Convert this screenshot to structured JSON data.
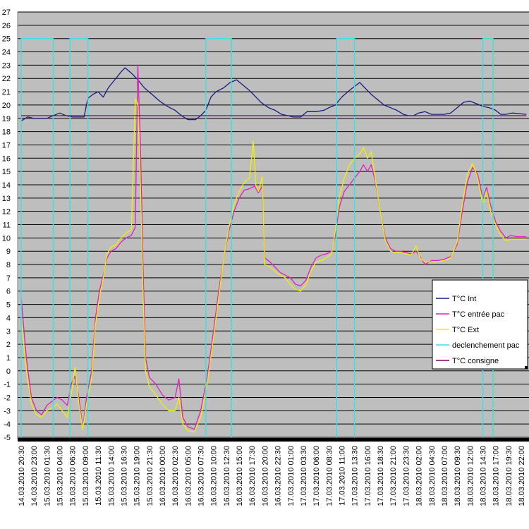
{
  "chart_data": {
    "type": "line",
    "title": "",
    "xlabel": "",
    "ylabel": "",
    "ylim": [
      -5,
      27
    ],
    "y_ticks": [
      -5,
      -4,
      -3,
      -2,
      -1,
      0,
      1,
      2,
      3,
      4,
      5,
      6,
      7,
      8,
      9,
      10,
      11,
      12,
      13,
      14,
      15,
      16,
      17,
      18,
      19,
      20,
      21,
      22,
      23,
      24,
      25,
      26,
      27
    ],
    "grid": true,
    "legend": "right",
    "x_tick_labels": [
      "14.03.2010 20:30",
      "14.03.2010 23:00",
      "15.03.2010 01:30",
      "15.03.2010 04:00",
      "15.03.2010 06:30",
      "15.03.2010 09:00",
      "15.03.2010 11:30",
      "15.03.2010 14:00",
      "15.03.2010 16:30",
      "15.03.2010 19:00",
      "15.03.2010 21:30",
      "16.03.2010 00:00",
      "16.03.2010 02:30",
      "16.03.2010 05:00",
      "16.03.2010 07:30",
      "16.03.2010 10:00",
      "16.03.2010 12:30",
      "16.03.2010 15:00",
      "16.03.2010 17:30",
      "16.03.2010 20:00",
      "16.03.2010 22:30",
      "17.03.2010 01:00",
      "17.03.2010 03:30",
      "17.03.2010 06:00",
      "17.03.2010 08:30",
      "17.03.2010 11:00",
      "17.03.2010 13:30",
      "17.03.2010 16:00",
      "17.03.2010 18:30",
      "17.03.2010 21:00",
      "17.03.2010 23:30",
      "18.03.2010 02:00",
      "18.03.2010 04:30",
      "18.03.2010 07:00",
      "18.03.2010 09:30",
      "18.03.2010 12:00",
      "18.03.2010 14:30",
      "18.03.2010 17:00",
      "18.03.2010 19:30",
      "18.03.2010 22:00"
    ],
    "x_range": [
      0,
      39.4
    ],
    "series": [
      {
        "name": "T°C Int",
        "color": "#1a1a80",
        "points": [
          [
            0,
            18.8
          ],
          [
            0.5,
            19.1
          ],
          [
            1,
            19
          ],
          [
            2,
            19
          ],
          [
            3,
            19.4
          ],
          [
            3.5,
            19.2
          ],
          [
            4,
            19.1
          ],
          [
            4.9,
            19.1
          ],
          [
            5.2,
            20.5
          ],
          [
            5.6,
            20.8
          ],
          [
            6,
            21
          ],
          [
            6.4,
            20.6
          ],
          [
            6.8,
            21.3
          ],
          [
            7.3,
            21.9
          ],
          [
            7.8,
            22.5
          ],
          [
            8.1,
            22.8
          ],
          [
            8.6,
            22.4
          ],
          [
            9.1,
            21.9
          ],
          [
            9.6,
            21.3
          ],
          [
            10.2,
            20.8
          ],
          [
            10.8,
            20.3
          ],
          [
            11.4,
            19.9
          ],
          [
            12,
            19.6
          ],
          [
            12.5,
            19.2
          ],
          [
            13,
            18.9
          ],
          [
            13.6,
            18.9
          ],
          [
            14,
            19.2
          ],
          [
            14.4,
            19.6
          ],
          [
            14.8,
            20.6
          ],
          [
            15.2,
            21
          ],
          [
            15.8,
            21.3
          ],
          [
            16.3,
            21.7
          ],
          [
            16.8,
            21.9
          ],
          [
            17.3,
            21.5
          ],
          [
            17.8,
            21.1
          ],
          [
            18.2,
            20.7
          ],
          [
            18.7,
            20.2
          ],
          [
            19.3,
            19.8
          ],
          [
            19.8,
            19.6
          ],
          [
            20.3,
            19.3
          ],
          [
            20.8,
            19.2
          ],
          [
            21.2,
            19.1
          ],
          [
            21.8,
            19.1
          ],
          [
            22.3,
            19.5
          ],
          [
            23,
            19.5
          ],
          [
            23.6,
            19.6
          ],
          [
            24,
            19.8
          ],
          [
            24.5,
            20
          ],
          [
            25,
            20.6
          ],
          [
            25.6,
            21.1
          ],
          [
            26,
            21.4
          ],
          [
            26.4,
            21.7
          ],
          [
            26.8,
            21.3
          ],
          [
            27.3,
            20.8
          ],
          [
            27.8,
            20.4
          ],
          [
            28.3,
            20
          ],
          [
            28.8,
            19.8
          ],
          [
            29.3,
            19.6
          ],
          [
            29.8,
            19.3
          ],
          [
            30.2,
            19.2
          ],
          [
            30.6,
            19.2
          ],
          [
            31,
            19.4
          ],
          [
            31.5,
            19.5
          ],
          [
            32,
            19.3
          ],
          [
            32.5,
            19.3
          ],
          [
            33,
            19.3
          ],
          [
            33.5,
            19.4
          ],
          [
            34,
            19.8
          ],
          [
            34.5,
            20.2
          ],
          [
            35,
            20.3
          ],
          [
            35.5,
            20.1
          ],
          [
            36,
            19.9
          ],
          [
            36.5,
            19.8
          ],
          [
            37,
            19.6
          ],
          [
            37.4,
            19.3
          ],
          [
            37.8,
            19.3
          ],
          [
            38.3,
            19.4
          ],
          [
            39.4,
            19.3
          ]
        ]
      },
      {
        "name": "T°C entrée pac",
        "color": "#e020c0",
        "points": [
          [
            0,
            5.5
          ],
          [
            0.4,
            1
          ],
          [
            0.8,
            -2
          ],
          [
            1.2,
            -3
          ],
          [
            1.6,
            -3.3
          ],
          [
            2,
            -2.6
          ],
          [
            2.4,
            -2.3
          ],
          [
            2.8,
            -2
          ],
          [
            3.2,
            -2.2
          ],
          [
            3.6,
            -2.6
          ],
          [
            3.9,
            -1
          ],
          [
            4.2,
            -0.4
          ],
          [
            4.5,
            -2
          ],
          [
            4.8,
            -4.3
          ],
          [
            5.1,
            -2
          ],
          [
            5.5,
            0
          ],
          [
            5.8,
            4
          ],
          [
            6.1,
            6
          ],
          [
            6.4,
            7.2
          ],
          [
            6.7,
            8.5
          ],
          [
            7,
            9
          ],
          [
            7.4,
            9.2
          ],
          [
            7.8,
            9.7
          ],
          [
            8.2,
            10
          ],
          [
            8.6,
            10.2
          ],
          [
            8.9,
            10.8
          ],
          [
            9.1,
            23
          ],
          [
            9.3,
            17
          ],
          [
            9.5,
            8
          ],
          [
            9.7,
            1
          ],
          [
            10,
            -0.5
          ],
          [
            10.5,
            -1
          ],
          [
            11,
            -1.8
          ],
          [
            11.5,
            -2.2
          ],
          [
            12,
            -2
          ],
          [
            12.3,
            -0.6
          ],
          [
            12.6,
            -3.5
          ],
          [
            13,
            -4.2
          ],
          [
            13.5,
            -4.4
          ],
          [
            14,
            -3
          ],
          [
            14.5,
            -0.5
          ],
          [
            15,
            3
          ],
          [
            15.4,
            6
          ],
          [
            15.8,
            8.5
          ],
          [
            16.2,
            10.5
          ],
          [
            16.6,
            12
          ],
          [
            17,
            13
          ],
          [
            17.4,
            13.6
          ],
          [
            17.8,
            13.7
          ],
          [
            18.2,
            13.9
          ],
          [
            18.5,
            13.4
          ],
          [
            18.8,
            13.9
          ],
          [
            19,
            8.5
          ],
          [
            19.4,
            8.2
          ],
          [
            19.8,
            7.8
          ],
          [
            20.2,
            7.4
          ],
          [
            20.6,
            7.2
          ],
          [
            21,
            7
          ],
          [
            21.4,
            6.5
          ],
          [
            21.8,
            6.4
          ],
          [
            22.2,
            6.8
          ],
          [
            22.6,
            7.8
          ],
          [
            23,
            8.5
          ],
          [
            23.4,
            8.7
          ],
          [
            23.8,
            8.8
          ],
          [
            24.2,
            9
          ],
          [
            24.5,
            10.2
          ],
          [
            24.8,
            12.3
          ],
          [
            25.2,
            13.5
          ],
          [
            25.6,
            14
          ],
          [
            26,
            14.5
          ],
          [
            26.4,
            15
          ],
          [
            26.7,
            15.5
          ],
          [
            27,
            15
          ],
          [
            27.3,
            15.5
          ],
          [
            27.6,
            14.3
          ],
          [
            28,
            12
          ],
          [
            28.4,
            10
          ],
          [
            28.8,
            9.2
          ],
          [
            29.2,
            9
          ],
          [
            29.6,
            9
          ],
          [
            30,
            8.9
          ],
          [
            30.4,
            8.8
          ],
          [
            30.8,
            9
          ],
          [
            31.1,
            8.6
          ],
          [
            31.5,
            8
          ],
          [
            32,
            8.3
          ],
          [
            32.5,
            8.3
          ],
          [
            33,
            8.4
          ],
          [
            33.5,
            8.6
          ],
          [
            34,
            9.5
          ],
          [
            34.4,
            12
          ],
          [
            34.8,
            14.2
          ],
          [
            35.2,
            15.3
          ],
          [
            35.6,
            14.8
          ],
          [
            36,
            13
          ],
          [
            36.3,
            13.8
          ],
          [
            36.6,
            12.5
          ],
          [
            37,
            11.2
          ],
          [
            37.4,
            10.5
          ],
          [
            37.8,
            10
          ],
          [
            38.2,
            10.2
          ],
          [
            38.6,
            10.1
          ],
          [
            39.4,
            10.1
          ]
        ]
      },
      {
        "name": "T°C Ext",
        "color": "#f0f000",
        "points": [
          [
            0,
            4
          ],
          [
            0.4,
            0
          ],
          [
            0.8,
            -2.5
          ],
          [
            1.2,
            -3.3
          ],
          [
            1.6,
            -3.5
          ],
          [
            2,
            -3
          ],
          [
            2.4,
            -2.8
          ],
          [
            2.8,
            -2.5
          ],
          [
            3.2,
            -3
          ],
          [
            3.6,
            -3.5
          ],
          [
            3.9,
            -1.8
          ],
          [
            4.2,
            0.3
          ],
          [
            4.5,
            -2.5
          ],
          [
            4.8,
            -4.4
          ],
          [
            5.1,
            -2.5
          ],
          [
            5.5,
            -0.5
          ],
          [
            5.8,
            3.5
          ],
          [
            6.1,
            5.5
          ],
          [
            6.4,
            7
          ],
          [
            6.7,
            8.8
          ],
          [
            7,
            9.3
          ],
          [
            7.4,
            9.5
          ],
          [
            7.8,
            10
          ],
          [
            8.2,
            10.4
          ],
          [
            8.6,
            10.6
          ],
          [
            8.9,
            20.5
          ],
          [
            9.1,
            20
          ],
          [
            9.3,
            14
          ],
          [
            9.5,
            6
          ],
          [
            9.7,
            0
          ],
          [
            10,
            -1.2
          ],
          [
            10.5,
            -1.8
          ],
          [
            11,
            -2.5
          ],
          [
            11.5,
            -3
          ],
          [
            12,
            -3
          ],
          [
            12.3,
            -2
          ],
          [
            12.6,
            -4
          ],
          [
            13,
            -4.5
          ],
          [
            13.5,
            -4.6
          ],
          [
            14,
            -3.5
          ],
          [
            14.5,
            -1
          ],
          [
            15,
            2.5
          ],
          [
            15.4,
            5.5
          ],
          [
            15.8,
            8.5
          ],
          [
            16.2,
            10.8
          ],
          [
            16.6,
            12.5
          ],
          [
            17,
            13.5
          ],
          [
            17.4,
            14.2
          ],
          [
            17.8,
            14.5
          ],
          [
            18.1,
            17.3
          ],
          [
            18.3,
            14
          ],
          [
            18.5,
            13.5
          ],
          [
            18.8,
            14.6
          ],
          [
            19,
            8
          ],
          [
            19.4,
            7.8
          ],
          [
            19.8,
            7.5
          ],
          [
            20.2,
            7.2
          ],
          [
            20.6,
            7
          ],
          [
            21,
            6.5
          ],
          [
            21.4,
            6.1
          ],
          [
            21.8,
            6
          ],
          [
            22.2,
            6.5
          ],
          [
            22.6,
            7.5
          ],
          [
            23,
            8.2
          ],
          [
            23.4,
            8.3
          ],
          [
            23.8,
            8.5
          ],
          [
            24.2,
            8.8
          ],
          [
            24.5,
            10.5
          ],
          [
            24.8,
            13
          ],
          [
            25.2,
            14.5
          ],
          [
            25.6,
            15.5
          ],
          [
            26,
            16
          ],
          [
            26.4,
            16.3
          ],
          [
            26.7,
            16.8
          ],
          [
            27,
            16
          ],
          [
            27.3,
            16.5
          ],
          [
            27.6,
            14.5
          ],
          [
            28,
            12
          ],
          [
            28.4,
            9.8
          ],
          [
            28.8,
            9
          ],
          [
            29.2,
            8.9
          ],
          [
            29.6,
            8.9
          ],
          [
            30,
            8.8
          ],
          [
            30.4,
            8.7
          ],
          [
            30.8,
            9.4
          ],
          [
            31.1,
            8.5
          ],
          [
            31.5,
            8.2
          ],
          [
            32,
            8.2
          ],
          [
            32.5,
            8.2
          ],
          [
            33,
            8.3
          ],
          [
            33.5,
            8.5
          ],
          [
            34,
            9.7
          ],
          [
            34.4,
            12.5
          ],
          [
            34.8,
            14.8
          ],
          [
            35.2,
            15.6
          ],
          [
            35.6,
            14.5
          ],
          [
            36,
            12.5
          ],
          [
            36.3,
            13.5
          ],
          [
            36.6,
            12
          ],
          [
            37,
            11
          ],
          [
            37.4,
            10.2
          ],
          [
            37.8,
            9.8
          ],
          [
            38.2,
            9.9
          ],
          [
            38.6,
            9.9
          ],
          [
            39.4,
            9.9
          ]
        ]
      },
      {
        "name": "declenchement pac",
        "color": "#40e0e0",
        "segments": [
          [
            0,
            2.5
          ],
          [
            3.8,
            5.2
          ],
          [
            14.4,
            16.4
          ],
          [
            24.6,
            26
          ],
          [
            36,
            36.8
          ]
        ],
        "on_value": 25,
        "off_value": -5
      },
      {
        "name": "T°C consigne",
        "color": "#800060",
        "points": [
          [
            0,
            19.2
          ],
          [
            39.4,
            19.2
          ]
        ]
      }
    ]
  }
}
